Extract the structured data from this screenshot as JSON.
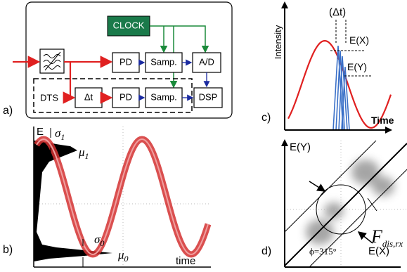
{
  "panel_a": {
    "label": "a)",
    "clock": "CLOCK",
    "blocks": [
      "PD",
      "Samp.",
      "A/D",
      "DTS",
      "Δt",
      "PD",
      "Samp.",
      "DSP"
    ]
  },
  "panel_b": {
    "label": "b)",
    "y_axis": "E",
    "x_axis": "time",
    "annotations": [
      {
        "symbol": "σ",
        "sub": "1"
      },
      {
        "symbol": "μ",
        "sub": "1"
      },
      {
        "symbol": "σ",
        "sub": "0"
      },
      {
        "symbol": "μ",
        "sub": "0"
      }
    ]
  },
  "panel_c": {
    "label": "c)",
    "y_axis": "Intensity",
    "x_axis": "Time",
    "delay": "(Δt)",
    "ex": "E(X)",
    "ey": "E(Y)"
  },
  "panel_d": {
    "label": "d)",
    "y_axis": "E(Y)",
    "x_axis": "E(X)",
    "metric": {
      "symbol": "F",
      "sub": "dis,rx"
    },
    "angle": "ϕ=315°"
  }
}
